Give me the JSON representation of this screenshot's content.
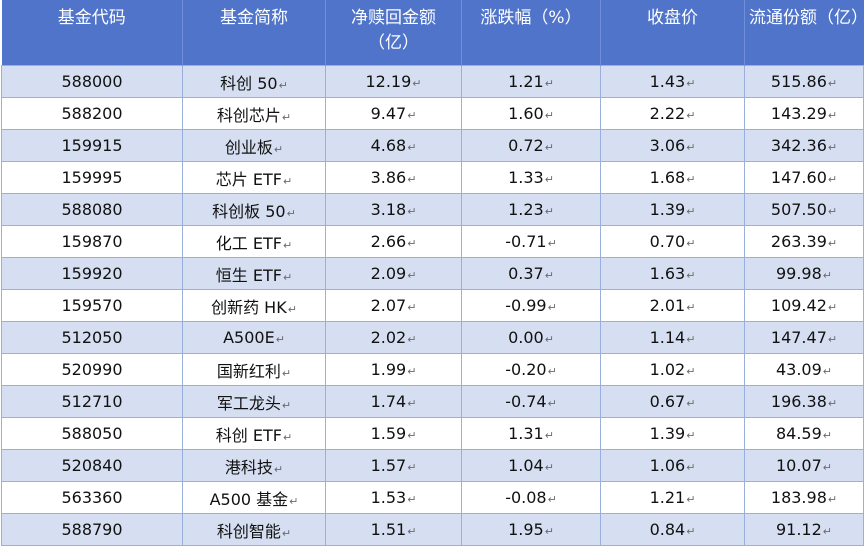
{
  "headers": [
    "基金代码",
    "基金简称",
    "净赎回金额（亿）",
    "涨跌幅（%）",
    "收盘价",
    "流通份额（亿）"
  ],
  "rows": [
    [
      "588000",
      "科创 50",
      "12.19",
      "1.21",
      "1.43",
      "515.86"
    ],
    [
      "588200",
      "科创芯片",
      "9.47",
      "1.60",
      "2.22",
      "143.29"
    ],
    [
      "159915",
      "创业板",
      "4.68",
      "0.72",
      "3.06",
      "342.36"
    ],
    [
      "159995",
      "芯片 ETF",
      "3.86",
      "1.33",
      "1.68",
      "147.60"
    ],
    [
      "588080",
      "科创板 50",
      "3.18",
      "1.23",
      "1.39",
      "507.50"
    ],
    [
      "159870",
      "化工 ETF",
      "2.66",
      "-0.71",
      "0.70",
      "263.39"
    ],
    [
      "159920",
      "恒生 ETF",
      "2.09",
      "0.37",
      "1.63",
      "99.98"
    ],
    [
      "159570",
      "创新药 HK",
      "2.07",
      "-0.99",
      "2.01",
      "109.42"
    ],
    [
      "512050",
      "A500E",
      "2.02",
      "0.00",
      "1.14",
      "147.47"
    ],
    [
      "520990",
      "国新红利",
      "1.99",
      "-0.20",
      "1.02",
      "43.09"
    ],
    [
      "512710",
      "军工龙头",
      "1.74",
      "-0.74",
      "0.67",
      "196.38"
    ],
    [
      "588050",
      "科创 ETF",
      "1.59",
      "1.31",
      "1.39",
      "84.59"
    ],
    [
      "520840",
      "港科技",
      "1.57",
      "1.04",
      "1.06",
      "10.07"
    ],
    [
      "563360",
      "A500 基金",
      "1.53",
      "-0.08",
      "1.21",
      "183.98"
    ],
    [
      "588790",
      "科创智能",
      "1.51",
      "1.95",
      "0.84",
      "91.12"
    ]
  ],
  "colors": {
    "header_bg": "#4f74c9",
    "band": "#d6def1",
    "border": "#9ab0dc"
  }
}
